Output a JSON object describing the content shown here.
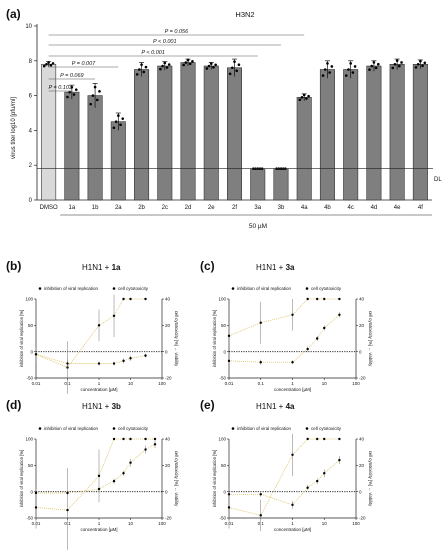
{
  "panel_labels": {
    "a": "(a)",
    "b": "(b)",
    "c": "(c)",
    "d": "(d)",
    "e": "(e)"
  },
  "colors": {
    "bar": "#7f7f7f",
    "dmso_bar": "#d9d9d9",
    "fit_line": "#d7b84a",
    "axis": "#222222"
  },
  "chart_data": [
    {
      "type": "bar",
      "panel": "a",
      "title": "H3N2",
      "ylabel": "virus titer log10 [pfu/ml]",
      "xlabel": "50 µM",
      "ylim": [
        0,
        10
      ],
      "yticks": [
        0,
        2,
        4,
        6,
        8,
        10
      ],
      "dl_label": "DL",
      "detection_limit": 1.8,
      "categories": [
        "DMSO",
        "1a",
        "1b",
        "2a",
        "2b",
        "2c",
        "2d",
        "2e",
        "2f",
        "3a",
        "3b",
        "4a",
        "4b",
        "4c",
        "4d",
        "4e",
        "4f"
      ],
      "values": [
        7.8,
        6.2,
        6.0,
        4.5,
        7.5,
        7.7,
        7.9,
        7.7,
        7.6,
        1.8,
        1.8,
        5.9,
        7.5,
        7.5,
        7.7,
        7.8,
        7.8
      ],
      "errors": [
        0.15,
        0.4,
        0.7,
        0.5,
        0.4,
        0.25,
        0.2,
        0.2,
        0.5,
        0.0,
        0.0,
        0.2,
        0.5,
        0.5,
        0.3,
        0.3,
        0.25
      ],
      "significance": [
        {
          "from": "DMSO",
          "to": "1a",
          "label": "P = 0.103"
        },
        {
          "from": "DMSO",
          "to": "1b",
          "label": "P = 0.069"
        },
        {
          "from": "DMSO",
          "to": "2a",
          "label": "P = 0.007"
        },
        {
          "from": "DMSO",
          "to": "3a",
          "label": "P < 0.001"
        },
        {
          "from": "DMSO",
          "to": "3b",
          "label": "P < 0.001"
        },
        {
          "from": "DMSO",
          "to": "4a",
          "label": "P = 0.056"
        }
      ]
    },
    {
      "type": "scatter",
      "panel": "b",
      "title_prefix": "H1N1 + ",
      "title_compound": "1a",
      "xlabel": "concentration [µM]",
      "ylabel_left": "inhibition of viral replication [%]",
      "ylabel_right": "cell cytotoxicity [%] ← viability",
      "legend": [
        "inhibition of viral replication",
        "cell cytotoxicity"
      ],
      "xticks": [
        "0.01",
        "0.1",
        "1",
        "10",
        "100"
      ],
      "yticks_left": [
        -50,
        0,
        50,
        100
      ],
      "yticks_right": [
        -20,
        0,
        20,
        40
      ],
      "series": [
        {
          "name": "inhibition of viral replication",
          "x": [
            0.01,
            0.1,
            1,
            3,
            6,
            10,
            30
          ],
          "y": [
            -5,
            -30,
            50,
            68,
            100,
            100,
            100
          ],
          "err": [
            15,
            50,
            30,
            40,
            0,
            0,
            0
          ]
        },
        {
          "name": "cell cytotoxicity",
          "x": [
            0.01,
            0.1,
            1,
            3,
            6,
            10,
            30
          ],
          "y": [
            -2,
            -9,
            -9,
            -9,
            -7,
            -5,
            -3
          ],
          "err": [
            2,
            3,
            1.5,
            1.5,
            2,
            2,
            1.5
          ]
        }
      ]
    },
    {
      "type": "scatter",
      "panel": "c",
      "title_prefix": "H1N1 + ",
      "title_compound": "3a",
      "xlabel": "concentration [µM]",
      "ylabel_left": "inhibition of viral replication [%]",
      "ylabel_right": "cell cytotoxicity [%] ← viability",
      "legend": [
        "inhibition of viral replication",
        "cell cytotoxicity"
      ],
      "xticks": [
        "0.01",
        "0.1",
        "1",
        "10",
        "100"
      ],
      "yticks_left": [
        -50,
        0,
        50,
        100
      ],
      "yticks_right": [
        -20,
        0,
        20,
        40
      ],
      "series": [
        {
          "name": "inhibition of viral replication",
          "x": [
            0.01,
            0.1,
            1,
            3,
            6,
            10,
            30
          ],
          "y": [
            30,
            55,
            70,
            100,
            100,
            100,
            100
          ],
          "err": [
            20,
            40,
            30,
            0,
            0,
            0,
            0
          ]
        },
        {
          "name": "cell cytotoxicity",
          "x": [
            0.01,
            0.1,
            1,
            3,
            6,
            10,
            30
          ],
          "y": [
            -7,
            -8,
            -8,
            2,
            10,
            18,
            28
          ],
          "err": [
            2,
            2,
            1.5,
            2,
            2,
            2,
            2
          ]
        }
      ]
    },
    {
      "type": "scatter",
      "panel": "d",
      "title_prefix": "H1N1 + ",
      "title_compound": "3b",
      "xlabel": "concentration [µM]",
      "ylabel_left": "inhibition of viral replication [%]",
      "ylabel_right": "cell cytotoxicity [%] ← viability",
      "legend": [
        "inhibition of viral replication",
        "cell cytotoxicity"
      ],
      "xticks": [
        "0.01",
        "0.1",
        "1",
        "10",
        "100"
      ],
      "yticks_left": [
        -50,
        0,
        50,
        100
      ],
      "yticks_right": [
        -20,
        0,
        20,
        40
      ],
      "series": [
        {
          "name": "inhibition of viral replication",
          "x": [
            0.01,
            0.1,
            1,
            3,
            6,
            10,
            30,
            60
          ],
          "y": [
            -30,
            -35,
            30,
            100,
            100,
            100,
            100,
            100
          ],
          "err": [
            40,
            80,
            50,
            0,
            0,
            0,
            0,
            0
          ]
        },
        {
          "name": "cell cytotoxicity",
          "x": [
            0.01,
            0.1,
            1,
            3,
            6,
            10,
            30,
            60
          ],
          "y": [
            -1,
            -1,
            2,
            8,
            14,
            22,
            32,
            36
          ],
          "err": [
            1.5,
            1.5,
            2,
            2,
            2,
            3,
            3,
            3
          ]
        }
      ]
    },
    {
      "type": "scatter",
      "panel": "e",
      "title_prefix": "H1N1 + ",
      "title_compound": "4a",
      "xlabel": "concentration [µM]",
      "ylabel_left": "inhibition of viral replication [%]",
      "ylabel_right": "cell cytotoxicity [%] ← viability",
      "legend": [
        "inhibition of viral replication",
        "cell cytotoxicity"
      ],
      "xticks": [
        "0.01",
        "0.1",
        "1",
        "10",
        "100"
      ],
      "yticks_left": [
        -50,
        0,
        50,
        100
      ],
      "yticks_right": [
        -20,
        0,
        20,
        40
      ],
      "series": [
        {
          "name": "inhibition of viral replication",
          "x": [
            0.01,
            0.1,
            1,
            3,
            6,
            10,
            30
          ],
          "y": [
            -30,
            -45,
            70,
            100,
            100,
            100,
            100
          ],
          "err": [
            40,
            30,
            40,
            0,
            0,
            0,
            0
          ]
        },
        {
          "name": "cell cytotoxicity",
          "x": [
            0.01,
            0.1,
            1,
            3,
            6,
            10,
            30
          ],
          "y": [
            -2,
            -2,
            -10,
            3,
            8,
            14,
            24
          ],
          "err": [
            2,
            2,
            3,
            2,
            2,
            3,
            3
          ]
        }
      ]
    }
  ]
}
